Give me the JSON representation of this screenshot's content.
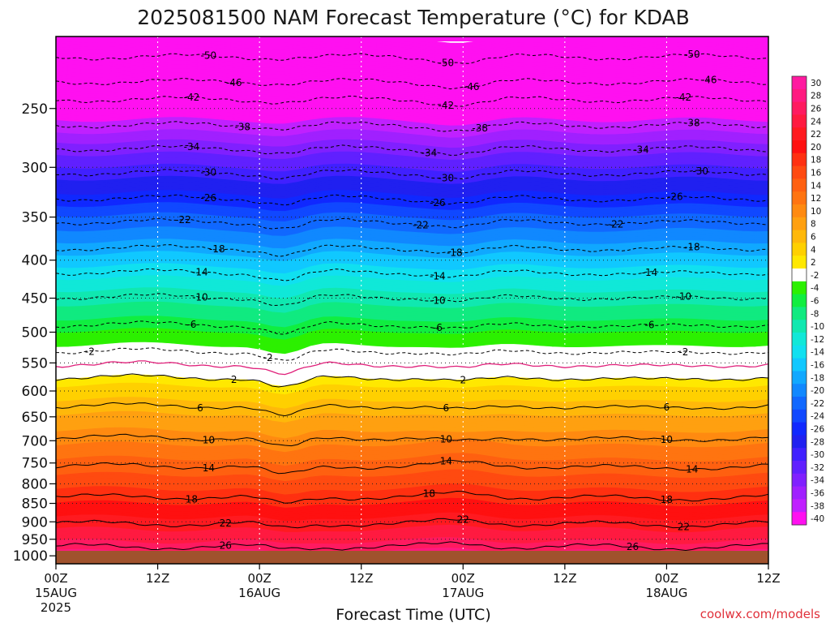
{
  "chart_data": {
    "type": "heatmap",
    "title": "2025081500 NAM Forecast Temperature (°C) for KDAB",
    "xlabel": "Forecast Time (UTC)",
    "ylabel": "",
    "credit": "coolwx.com/models",
    "y_scale": "log",
    "ylim": [
      1025,
      200
    ],
    "y_ticks": [
      250,
      300,
      350,
      400,
      450,
      500,
      550,
      600,
      650,
      700,
      750,
      800,
      850,
      900,
      950,
      1000
    ],
    "xlim_hours": [
      0,
      84
    ],
    "x_ticks": [
      {
        "hour": 0,
        "label": "00Z",
        "date": "15AUG",
        "year": "2025"
      },
      {
        "hour": 12,
        "label": "12Z",
        "date": "",
        "year": ""
      },
      {
        "hour": 24,
        "label": "00Z",
        "date": "16AUG",
        "year": ""
      },
      {
        "hour": 36,
        "label": "12Z",
        "date": "",
        "year": ""
      },
      {
        "hour": 48,
        "label": "00Z",
        "date": "17AUG",
        "year": ""
      },
      {
        "hour": 60,
        "label": "12Z",
        "date": "",
        "year": ""
      },
      {
        "hour": 72,
        "label": "00Z",
        "date": "18AUG",
        "year": ""
      },
      {
        "hour": 84,
        "label": "12Z",
        "date": "",
        "year": ""
      }
    ],
    "colorbar": {
      "levels": [
        30,
        28,
        26,
        24,
        22,
        20,
        18,
        16,
        14,
        12,
        10,
        8,
        6,
        4,
        2,
        -2,
        -4,
        -6,
        -8,
        -10,
        -12,
        -14,
        -16,
        -18,
        -20,
        -22,
        -24,
        -26,
        -28,
        -30,
        -32,
        -34,
        -36,
        -38,
        -40
      ],
      "colors": [
        "#ff1aa0",
        "#ff1a80",
        "#ff1a60",
        "#ff1a40",
        "#ff1a20",
        "#ff1010",
        "#ff3010",
        "#ff4a10",
        "#ff6010",
        "#ff7410",
        "#ff8a10",
        "#ffa010",
        "#ffb80a",
        "#ffd000",
        "#ffe800",
        "#ffffff",
        "#2cf000",
        "#10ee40",
        "#10ea80",
        "#10e8b0",
        "#10e8d8",
        "#10e0f0",
        "#10c8ff",
        "#10a8ff",
        "#1088ff",
        "#1068ff",
        "#1048ff",
        "#1028ff",
        "#2020f0",
        "#4020ff",
        "#6020ff",
        "#8020ff",
        "#a020ff",
        "#c020ff",
        "#ff10f0"
      ]
    },
    "contours": {
      "negative_levels": [
        -50,
        -46,
        -42,
        -38,
        -34,
        -30,
        -26,
        -22,
        -18,
        -14,
        -10,
        -6,
        -2
      ],
      "freezing_level": 0,
      "positive_levels": [
        2,
        6,
        10,
        14,
        18,
        22,
        26
      ]
    },
    "temperature_profile_at_hour0": [
      {
        "pressure": 200,
        "temp": -52
      },
      {
        "pressure": 213,
        "temp": -50
      },
      {
        "pressure": 230,
        "temp": -46
      },
      {
        "pressure": 243,
        "temp": -42
      },
      {
        "pressure": 263,
        "temp": -38
      },
      {
        "pressure": 283,
        "temp": -34
      },
      {
        "pressure": 305,
        "temp": -30
      },
      {
        "pressure": 330,
        "temp": -26
      },
      {
        "pressure": 355,
        "temp": -22
      },
      {
        "pressure": 385,
        "temp": -18
      },
      {
        "pressure": 415,
        "temp": -14
      },
      {
        "pressure": 448,
        "temp": -10
      },
      {
        "pressure": 488,
        "temp": -6
      },
      {
        "pressure": 530,
        "temp": -2
      },
      {
        "pressure": 552,
        "temp": 0
      },
      {
        "pressure": 575,
        "temp": 2
      },
      {
        "pressure": 628,
        "temp": 6
      },
      {
        "pressure": 693,
        "temp": 10
      },
      {
        "pressure": 757,
        "temp": 14
      },
      {
        "pressure": 833,
        "temp": 18
      },
      {
        "pressure": 905,
        "temp": 22
      },
      {
        "pressure": 972,
        "temp": 26
      },
      {
        "pressure": 1025,
        "temp": 29
      }
    ],
    "contour_labels": [
      {
        "value": -50,
        "hours": [
          18,
          46,
          75
        ]
      },
      {
        "value": -46,
        "hours": [
          21,
          49,
          77
        ]
      },
      {
        "value": -42,
        "hours": [
          16,
          46,
          74
        ]
      },
      {
        "value": -38,
        "hours": [
          22,
          50,
          75
        ]
      },
      {
        "value": -34,
        "hours": [
          16,
          44,
          69
        ]
      },
      {
        "value": -30,
        "hours": [
          18,
          46,
          76
        ]
      },
      {
        "value": -26,
        "hours": [
          18,
          45,
          73
        ]
      },
      {
        "value": -22,
        "hours": [
          15,
          43,
          66
        ]
      },
      {
        "value": -18,
        "hours": [
          19,
          47,
          75
        ]
      },
      {
        "value": -14,
        "hours": [
          17,
          45,
          70
        ]
      },
      {
        "value": -10,
        "hours": [
          17,
          45,
          74
        ]
      },
      {
        "value": -6,
        "hours": [
          16,
          45,
          70
        ]
      },
      {
        "value": -2,
        "hours": [
          4,
          25,
          74
        ]
      },
      {
        "value": 2,
        "hours": [
          21,
          48
        ]
      },
      {
        "value": 6,
        "hours": [
          17,
          46,
          72
        ]
      },
      {
        "value": 10,
        "hours": [
          18,
          46,
          72
        ]
      },
      {
        "value": 14,
        "hours": [
          18,
          46,
          75
        ]
      },
      {
        "value": 18,
        "hours": [
          16,
          44,
          72
        ]
      },
      {
        "value": 22,
        "hours": [
          20,
          48,
          74
        ]
      },
      {
        "value": 26,
        "hours": [
          20,
          68
        ]
      }
    ],
    "ground_color": "#a0522d"
  }
}
